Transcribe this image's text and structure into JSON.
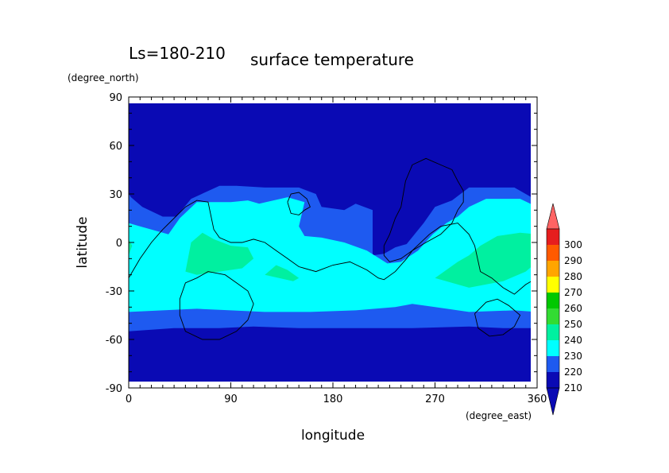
{
  "chart_data": {
    "type": "heatmap",
    "title": "surface temperature",
    "subtitle": "Ls=180-210",
    "xlabel": "longitude",
    "ylabel": "latitude",
    "x_units": "(degree_east)",
    "y_units": "(degree_north)",
    "xlim": [
      0,
      360
    ],
    "ylim": [
      -90,
      90
    ],
    "x_ticks": [
      0,
      90,
      180,
      270,
      360
    ],
    "y_ticks": [
      90,
      60,
      30,
      0,
      -30,
      -60,
      -90
    ],
    "grid": false,
    "legend_placement": "right",
    "colorbar": {
      "levels": [
        210,
        220,
        230,
        240,
        250,
        260,
        270,
        280,
        290,
        300
      ],
      "colors": [
        "#0a0ab4",
        "#1e5af0",
        "#00ffff",
        "#00f0a0",
        "#32dc32",
        "#00c800",
        "#ffff00",
        "#ffa500",
        "#ff5a00",
        "#e61e1e",
        "#ff6464"
      ],
      "extend": "both"
    },
    "series": [
      {
        "level": "210-220",
        "regions": [
          [
            [
              0,
              -90
            ],
            [
              360,
              -90
            ],
            [
              360,
              90
            ],
            [
              0,
              90
            ]
          ]
        ]
      },
      {
        "level": "220-230",
        "regions": [
          [
            [
              0,
              -55
            ],
            [
              40,
              -53
            ],
            [
              80,
              -53
            ],
            [
              110,
              -52
            ],
            [
              150,
              -53
            ],
            [
              200,
              -53
            ],
            [
              250,
              -53
            ],
            [
              300,
              -52
            ],
            [
              330,
              -53
            ],
            [
              360,
              -53
            ],
            [
              360,
              26
            ],
            [
              340,
              34
            ],
            [
              300,
              34
            ],
            [
              285,
              26
            ],
            [
              270,
              22
            ],
            [
              260,
              12
            ],
            [
              245,
              -1
            ],
            [
              235,
              -3
            ],
            [
              225,
              -7
            ],
            [
              215,
              -8
            ],
            [
              215,
              20
            ],
            [
              200,
              24
            ],
            [
              190,
              20
            ],
            [
              170,
              22
            ],
            [
              165,
              30
            ],
            [
              150,
              34
            ],
            [
              120,
              34
            ],
            [
              95,
              35
            ],
            [
              80,
              35
            ],
            [
              55,
              27
            ],
            [
              42,
              16
            ],
            [
              30,
              16
            ],
            [
              12,
              22
            ],
            [
              2,
              28
            ],
            [
              0,
              30
            ]
          ],
          [
            [
              148,
              20
            ],
            [
              152,
              30
            ],
            [
              146,
              30
            ]
          ]
        ]
      },
      {
        "level": "230-240",
        "regions": [
          [
            [
              0,
              -43
            ],
            [
              30,
              -42
            ],
            [
              60,
              -41
            ],
            [
              90,
              -42
            ],
            [
              120,
              -43
            ],
            [
              160,
              -43
            ],
            [
              200,
              -42
            ],
            [
              235,
              -40
            ],
            [
              250,
              -38
            ],
            [
              270,
              -40
            ],
            [
              300,
              -43
            ],
            [
              340,
              -42
            ],
            [
              360,
              -43
            ],
            [
              360,
              22
            ],
            [
              345,
              27
            ],
            [
              315,
              27
            ],
            [
              300,
              22
            ],
            [
              290,
              16
            ],
            [
              280,
              12
            ],
            [
              268,
              5
            ],
            [
              255,
              -5
            ],
            [
              240,
              -12
            ],
            [
              228,
              -13
            ],
            [
              210,
              -5
            ],
            [
              190,
              0
            ],
            [
              170,
              3
            ],
            [
              155,
              4
            ],
            [
              150,
              10
            ],
            [
              155,
              25
            ],
            [
              140,
              28
            ],
            [
              115,
              24
            ],
            [
              105,
              26
            ],
            [
              90,
              25
            ],
            [
              60,
              25
            ],
            [
              45,
              15
            ],
            [
              35,
              5
            ],
            [
              20,
              8
            ],
            [
              10,
              10
            ],
            [
              0,
              12
            ]
          ]
        ]
      },
      {
        "level": "240-250",
        "regions": [
          [
            [
              0,
              2
            ],
            [
              3,
              -2
            ],
            [
              0,
              -8
            ]
          ],
          [
            [
              50,
              -18
            ],
            [
              60,
              -20
            ],
            [
              80,
              -18
            ],
            [
              100,
              -16
            ],
            [
              110,
              -10
            ],
            [
              105,
              -3
            ],
            [
              90,
              -2
            ],
            [
              75,
              2
            ],
            [
              65,
              6
            ],
            [
              55,
              0
            ]
          ],
          [
            [
              120,
              -20
            ],
            [
              145,
              -24
            ],
            [
              150,
              -22
            ],
            [
              140,
              -17
            ],
            [
              130,
              -14
            ]
          ],
          [
            [
              270,
              -22
            ],
            [
              300,
              -28
            ],
            [
              330,
              -24
            ],
            [
              350,
              -18
            ],
            [
              360,
              -12
            ],
            [
              360,
              5
            ],
            [
              345,
              6
            ],
            [
              325,
              4
            ],
            [
              310,
              -2
            ],
            [
              300,
              -8
            ],
            [
              290,
              -12
            ]
          ]
        ]
      }
    ],
    "contours": [
      [
        [
          0,
          -22
        ],
        [
          10,
          -10
        ],
        [
          20,
          0
        ],
        [
          30,
          8
        ],
        [
          40,
          15
        ],
        [
          50,
          22
        ],
        [
          60,
          26
        ],
        [
          70,
          25
        ],
        [
          75,
          8
        ],
        [
          80,
          3
        ],
        [
          90,
          0
        ],
        [
          100,
          0
        ],
        [
          110,
          2
        ],
        [
          120,
          0
        ],
        [
          130,
          -5
        ],
        [
          140,
          -10
        ],
        [
          150,
          -15
        ],
        [
          165,
          -18
        ],
        [
          180,
          -14
        ],
        [
          195,
          -12
        ],
        [
          210,
          -17
        ],
        [
          220,
          -22
        ],
        [
          225,
          -23
        ],
        [
          235,
          -18
        ],
        [
          245,
          -10
        ],
        [
          250,
          -5
        ],
        [
          265,
          5
        ],
        [
          275,
          10
        ],
        [
          290,
          12
        ],
        [
          300,
          5
        ],
        [
          305,
          -2
        ],
        [
          310,
          -18
        ],
        [
          320,
          -22
        ],
        [
          330,
          -28
        ],
        [
          340,
          -32
        ],
        [
          350,
          -26
        ],
        [
          360,
          -22
        ]
      ],
      [
        [
          225,
          -2
        ],
        [
          230,
          5
        ],
        [
          235,
          15
        ],
        [
          240,
          22
        ],
        [
          244,
          38
        ],
        [
          250,
          48
        ],
        [
          262,
          52
        ],
        [
          275,
          48
        ],
        [
          285,
          45
        ],
        [
          290,
          38
        ],
        [
          295,
          32
        ],
        [
          295,
          25
        ],
        [
          290,
          20
        ],
        [
          285,
          12
        ],
        [
          275,
          5
        ],
        [
          262,
          0
        ],
        [
          250,
          -5
        ],
        [
          240,
          -10
        ],
        [
          230,
          -12
        ],
        [
          225,
          -8
        ],
        [
          225,
          -2
        ]
      ],
      [
        [
          140,
          25
        ],
        [
          143,
          30
        ],
        [
          150,
          31
        ],
        [
          157,
          27
        ],
        [
          160,
          22
        ],
        [
          155,
          20
        ],
        [
          150,
          17
        ],
        [
          143,
          18
        ],
        [
          140,
          25
        ]
      ],
      [
        [
          60,
          -22
        ],
        [
          70,
          -18
        ],
        [
          85,
          -20
        ],
        [
          95,
          -25
        ],
        [
          105,
          -30
        ],
        [
          110,
          -38
        ],
        [
          105,
          -48
        ],
        [
          95,
          -55
        ],
        [
          80,
          -60
        ],
        [
          65,
          -60
        ],
        [
          50,
          -55
        ],
        [
          45,
          -45
        ],
        [
          45,
          -35
        ],
        [
          50,
          -25
        ],
        [
          60,
          -22
        ]
      ],
      [
        [
          305,
          -44
        ],
        [
          315,
          -37
        ],
        [
          325,
          -35
        ],
        [
          335,
          -39
        ],
        [
          345,
          -45
        ],
        [
          340,
          -52
        ],
        [
          330,
          -57
        ],
        [
          318,
          -58
        ],
        [
          308,
          -53
        ],
        [
          305,
          -44
        ]
      ]
    ]
  }
}
